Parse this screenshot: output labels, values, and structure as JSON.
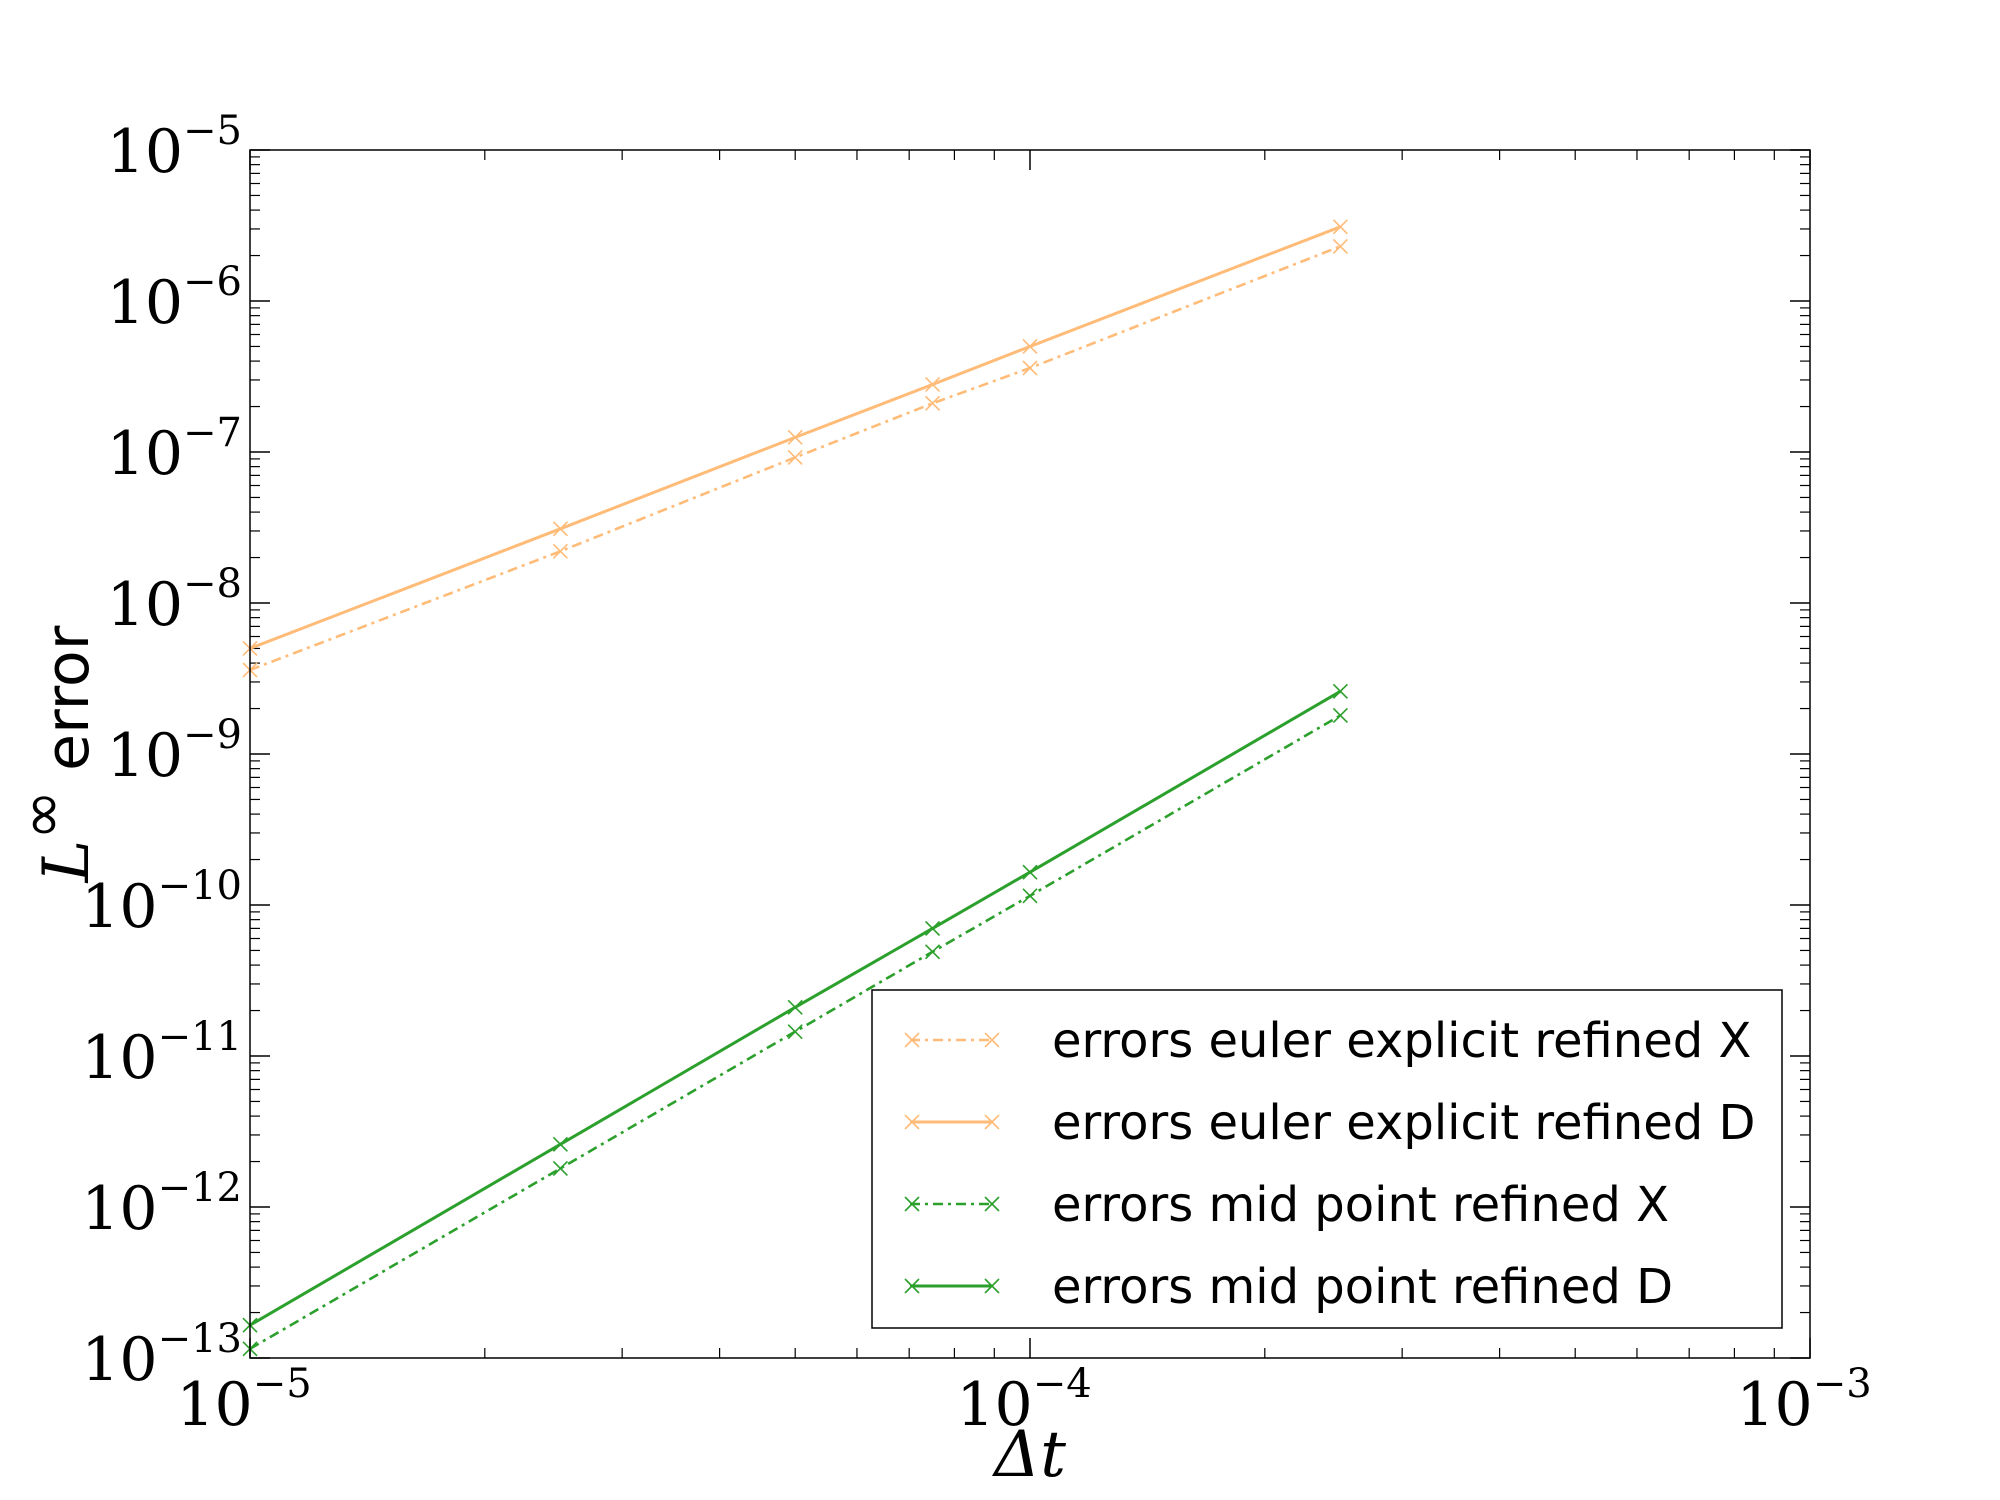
{
  "chart_data": {
    "type": "line",
    "xscale": "log",
    "yscale": "log",
    "xlim": [
      1e-05,
      0.001
    ],
    "ylim": [
      1e-13,
      1e-05
    ],
    "grid": false,
    "legend_position": "bottom-right",
    "xlabel": "Δt",
    "ylabel_math": "L",
    "ylabel_sup": "∞",
    "ylabel_text": " error",
    "x_ticks": [
      {
        "value": 1e-05,
        "base": "10",
        "exp": "−5"
      },
      {
        "value": 0.0001,
        "base": "10",
        "exp": "−4"
      },
      {
        "value": 0.001,
        "base": "10",
        "exp": "−3"
      }
    ],
    "y_ticks": [
      {
        "value": 1e-13,
        "base": "10",
        "exp": "−13"
      },
      {
        "value": 1e-12,
        "base": "10",
        "exp": "−12"
      },
      {
        "value": 1e-11,
        "base": "10",
        "exp": "−11"
      },
      {
        "value": 1e-10,
        "base": "10",
        "exp": "−10"
      },
      {
        "value": 1e-09,
        "base": "10",
        "exp": "−9"
      },
      {
        "value": 1e-08,
        "base": "10",
        "exp": "−8"
      },
      {
        "value": 1e-07,
        "base": "10",
        "exp": "−7"
      },
      {
        "value": 1e-06,
        "base": "10",
        "exp": "−6"
      },
      {
        "value": 1e-05,
        "base": "10",
        "exp": "−5"
      }
    ],
    "series": [
      {
        "name": "errors euler explicit refined X",
        "color": "#ffbb78",
        "style": "dotted",
        "x": [
          1e-05,
          2.5e-05,
          5e-05,
          7.5e-05,
          0.0001,
          0.00025
        ],
        "y": [
          3.6e-09,
          2.2e-08,
          9.2e-08,
          2.1e-07,
          3.6e-07,
          2.3e-06
        ]
      },
      {
        "name": "errors euler explicit refined D",
        "color": "#ffbb78",
        "style": "solid",
        "x": [
          1e-05,
          2.5e-05,
          5e-05,
          7.5e-05,
          0.0001,
          0.00025
        ],
        "y": [
          5e-09,
          3.1e-08,
          1.25e-07,
          2.8e-07,
          5e-07,
          3.1e-06
        ]
      },
      {
        "name": "errors mid point refined X",
        "color": "#2ca02c",
        "style": "dotted",
        "x": [
          1e-05,
          2.5e-05,
          5e-05,
          7.5e-05,
          0.0001,
          0.00025
        ],
        "y": [
          1.15e-13,
          1.8e-12,
          1.45e-11,
          4.9e-11,
          1.15e-10,
          1.8e-09
        ]
      },
      {
        "name": "errors mid point refined D",
        "color": "#2ca02c",
        "style": "solid",
        "x": [
          1e-05,
          2.5e-05,
          5e-05,
          7.5e-05,
          0.0001,
          0.00025
        ],
        "y": [
          1.65e-13,
          2.6e-12,
          2.1e-11,
          7e-11,
          1.65e-10,
          2.6e-09
        ]
      }
    ]
  }
}
